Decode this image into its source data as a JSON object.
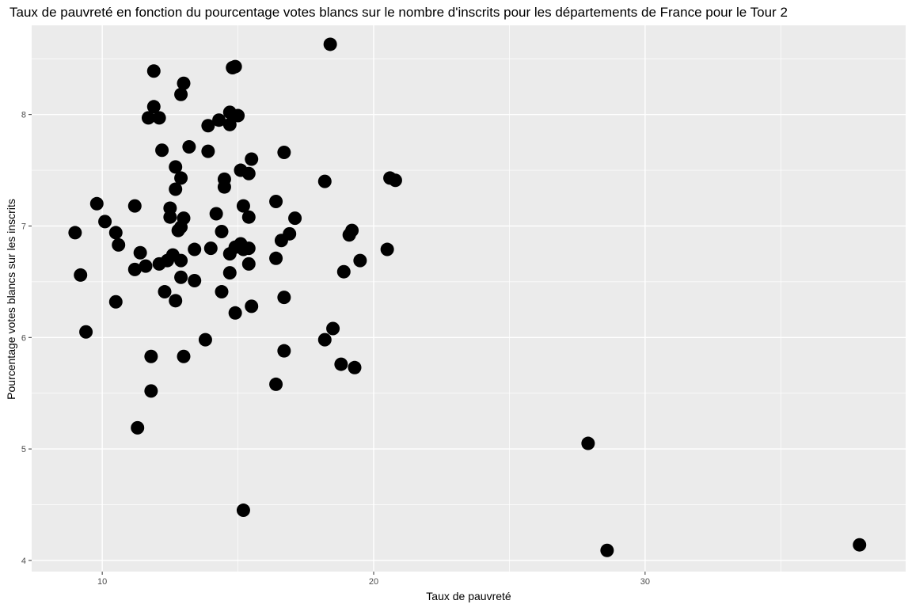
{
  "chart_data": {
    "type": "scatter",
    "title": "Taux de pauvreté en fonction du pourcentage votes blancs sur le nombre d'inscrits pour les départements de France pour le Tour 2",
    "xlabel": "Taux de pauvreté",
    "ylabel": "Pourcentage votes blancs sur les inscrits",
    "xlim": [
      7.4,
      39.6
    ],
    "ylim": [
      3.9,
      8.8
    ],
    "x_ticks": [
      10,
      20,
      30
    ],
    "y_ticks": [
      4,
      5,
      6,
      7,
      8
    ],
    "grid": true,
    "legend": "none",
    "colors": {
      "panel": "#ebebeb",
      "grid": "#ffffff",
      "point": "#000000"
    },
    "points": [
      [
        9.0,
        6.94
      ],
      [
        9.2,
        6.56
      ],
      [
        9.4,
        6.05
      ],
      [
        9.8,
        7.2
      ],
      [
        10.1,
        7.04
      ],
      [
        10.5,
        6.94
      ],
      [
        10.6,
        6.83
      ],
      [
        10.5,
        6.32
      ],
      [
        11.2,
        7.18
      ],
      [
        11.2,
        6.61
      ],
      [
        11.3,
        5.19
      ],
      [
        11.4,
        6.76
      ],
      [
        11.6,
        6.64
      ],
      [
        11.7,
        7.97
      ],
      [
        11.8,
        5.83
      ],
      [
        11.8,
        5.52
      ],
      [
        11.9,
        8.07
      ],
      [
        11.9,
        8.39
      ],
      [
        12.1,
        7.97
      ],
      [
        12.1,
        6.66
      ],
      [
        12.2,
        7.68
      ],
      [
        12.3,
        6.41
      ],
      [
        12.4,
        6.69
      ],
      [
        12.5,
        7.16
      ],
      [
        12.5,
        7.08
      ],
      [
        12.6,
        6.74
      ],
      [
        12.7,
        7.53
      ],
      [
        12.7,
        7.33
      ],
      [
        12.7,
        6.33
      ],
      [
        12.8,
        6.96
      ],
      [
        12.9,
        8.18
      ],
      [
        12.9,
        7.43
      ],
      [
        12.9,
        6.99
      ],
      [
        12.9,
        6.69
      ],
      [
        12.9,
        6.54
      ],
      [
        13.0,
        8.28
      ],
      [
        13.0,
        7.07
      ],
      [
        13.0,
        5.83
      ],
      [
        13.2,
        7.71
      ],
      [
        13.4,
        6.79
      ],
      [
        13.4,
        6.51
      ],
      [
        13.8,
        5.98
      ],
      [
        13.9,
        7.9
      ],
      [
        13.9,
        7.67
      ],
      [
        14.0,
        6.8
      ],
      [
        14.2,
        7.11
      ],
      [
        14.3,
        7.95
      ],
      [
        14.4,
        6.95
      ],
      [
        14.4,
        6.41
      ],
      [
        14.5,
        7.42
      ],
      [
        14.5,
        7.35
      ],
      [
        14.7,
        8.02
      ],
      [
        14.7,
        7.91
      ],
      [
        14.7,
        6.75
      ],
      [
        14.7,
        6.58
      ],
      [
        14.8,
        8.42
      ],
      [
        14.9,
        8.43
      ],
      [
        14.9,
        6.81
      ],
      [
        14.9,
        6.22
      ],
      [
        15.0,
        7.99
      ],
      [
        15.1,
        7.5
      ],
      [
        15.1,
        6.84
      ],
      [
        15.2,
        7.18
      ],
      [
        15.2,
        6.79
      ],
      [
        15.2,
        4.45
      ],
      [
        15.4,
        7.47
      ],
      [
        15.4,
        7.08
      ],
      [
        15.4,
        6.8
      ],
      [
        15.4,
        6.66
      ],
      [
        15.5,
        7.6
      ],
      [
        15.5,
        6.28
      ],
      [
        16.4,
        7.22
      ],
      [
        16.4,
        6.71
      ],
      [
        16.4,
        5.58
      ],
      [
        16.6,
        6.87
      ],
      [
        16.7,
        7.66
      ],
      [
        16.7,
        6.36
      ],
      [
        16.7,
        5.88
      ],
      [
        16.9,
        6.93
      ],
      [
        17.1,
        7.07
      ],
      [
        18.2,
        7.4
      ],
      [
        18.2,
        5.98
      ],
      [
        18.4,
        8.63
      ],
      [
        18.5,
        6.08
      ],
      [
        18.8,
        5.76
      ],
      [
        18.9,
        6.59
      ],
      [
        19.1,
        6.92
      ],
      [
        19.2,
        6.96
      ],
      [
        19.3,
        5.73
      ],
      [
        19.5,
        6.69
      ],
      [
        20.5,
        6.79
      ],
      [
        20.6,
        7.43
      ],
      [
        20.8,
        7.41
      ],
      [
        27.9,
        5.05
      ],
      [
        28.6,
        4.09
      ],
      [
        37.9,
        4.14
      ]
    ]
  }
}
